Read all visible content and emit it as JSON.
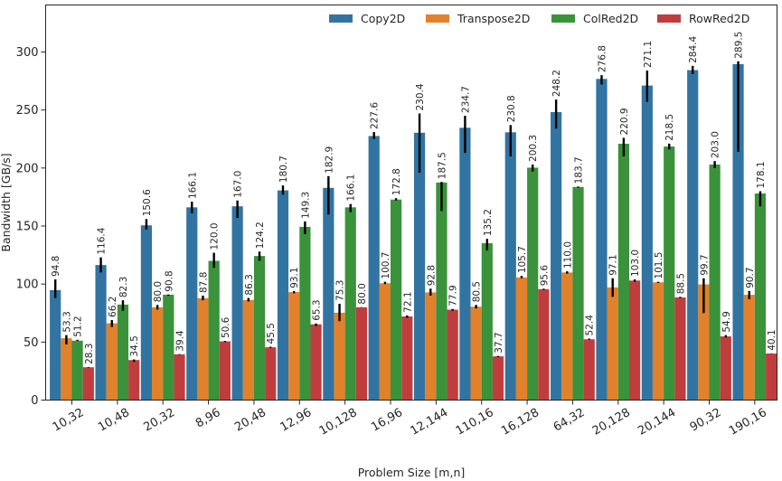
{
  "chart_data": {
    "type": "bar",
    "title": "",
    "xlabel": "Problem Size [m,n]",
    "ylabel": "Bandwidth [GB/s]",
    "ylim": [
      0,
      335
    ],
    "yticks": [
      0,
      50,
      100,
      150,
      200,
      250,
      300
    ],
    "grid": false,
    "legend_position": "top-right",
    "categories": [
      "10,32",
      "10,48",
      "20,32",
      "8,96",
      "20,48",
      "12,96",
      "10,128",
      "16,96",
      "12,144",
      "110,16",
      "16,128",
      "64,32",
      "20,128",
      "20,144",
      "90,32",
      "190,16"
    ],
    "series": [
      {
        "name": "Copy2D",
        "color": "#3274a1",
        "values": [
          94.8,
          116.4,
          150.6,
          166.1,
          167.0,
          180.7,
          182.9,
          227.6,
          230.4,
          234.7,
          230.8,
          248.2,
          276.8,
          271.1,
          284.4,
          289.5
        ],
        "error_low": [
          88,
          110,
          147,
          161,
          157,
          177,
          160,
          225,
          196,
          213,
          210,
          234,
          272,
          257,
          281,
          214
        ],
        "error_high": [
          104,
          123,
          156,
          171,
          172,
          185,
          193,
          231,
          247,
          245,
          237,
          259,
          280,
          284,
          288,
          292
        ]
      },
      {
        "name": "Transpose2D",
        "color": "#e1812c",
        "values": [
          53.3,
          66.2,
          80.0,
          87.8,
          86.3,
          93.1,
          75.3,
          100.7,
          92.8,
          80.5,
          105.7,
          110.0,
          97.1,
          101.5,
          99.7,
          90.7
        ],
        "error_low": [
          48,
          63,
          78,
          86,
          85,
          92,
          68,
          100,
          90,
          79,
          105,
          109,
          89,
          101,
          75,
          87
        ],
        "error_high": [
          56,
          69,
          82,
          90,
          88,
          94,
          83,
          102,
          96,
          82,
          107,
          111,
          105,
          102,
          105,
          94
        ]
      },
      {
        "name": "ColRed2D",
        "color": "#3a923a",
        "values": [
          51.2,
          82.3,
          90.8,
          120.0,
          124.2,
          149.3,
          166.1,
          172.8,
          187.5,
          135.2,
          200.3,
          183.7,
          220.9,
          218.5,
          203.0,
          178.1
        ],
        "error_low": [
          51,
          77,
          90,
          114,
          120,
          143,
          162,
          172,
          163,
          129,
          197,
          183,
          210,
          216,
          200,
          167
        ],
        "error_high": [
          52,
          86,
          91,
          127,
          128,
          154,
          169,
          174,
          188,
          139,
          203,
          184,
          226,
          221,
          206,
          180
        ]
      },
      {
        "name": "RowRed2D",
        "color": "#c03d3e",
        "values": [
          28.3,
          34.5,
          39.4,
          50.6,
          45.5,
          65.3,
          80.0,
          72.1,
          77.9,
          37.7,
          95.6,
          52.4,
          103.0,
          88.5,
          54.9,
          40.1
        ],
        "error_low": [
          28,
          33,
          39,
          50,
          45,
          64,
          80,
          71,
          77,
          37,
          95,
          52,
          102,
          88,
          54,
          40
        ],
        "error_high": [
          28.5,
          35,
          39.6,
          51,
          46,
          66,
          80.2,
          73,
          78.5,
          38,
          96,
          53,
          104,
          89,
          56,
          40.3
        ]
      }
    ]
  }
}
